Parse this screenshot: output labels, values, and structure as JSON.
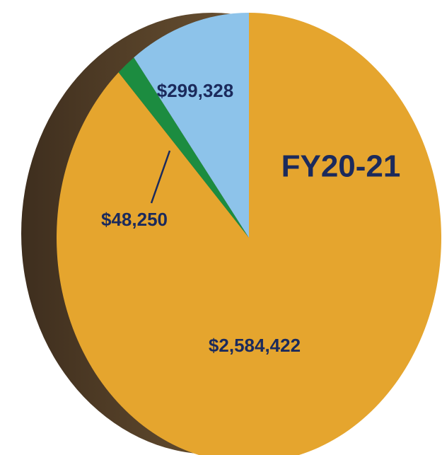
{
  "chart_data": {
    "type": "pie",
    "title": "FY20-21",
    "values": [
      2584422,
      48250,
      299328
    ],
    "value_labels": [
      "$2,584,422",
      "$48,250",
      "$299,328"
    ],
    "colors": [
      "#e5a52e",
      "#1c8c40",
      "#8dc3ea"
    ]
  }
}
